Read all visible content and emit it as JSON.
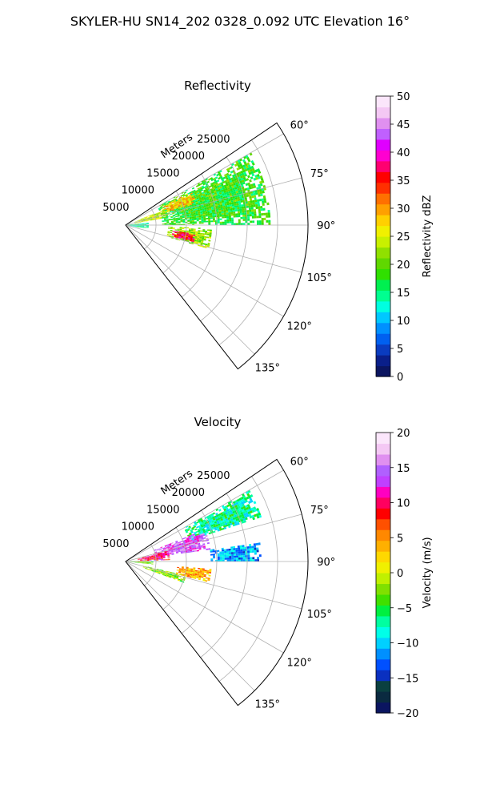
{
  "suptitle": "SKYLER-HU  SN14_202  0328_0.092 UTC Elevation 16°",
  "chart_data": [
    {
      "type": "heatmap",
      "subtype": "polar-sector",
      "title": "Reflectivity",
      "radial_label": "Meters",
      "radial_ticks": [
        "5000",
        "10000",
        "15000",
        "20000",
        "25000"
      ],
      "radial_values": [
        5000,
        10000,
        15000,
        20000,
        25000
      ],
      "angle_ticks": [
        "60°",
        "75°",
        "90°",
        "105°",
        "120°",
        "135°"
      ],
      "angle_values": [
        60,
        75,
        90,
        105,
        120,
        135
      ],
      "angle_range": [
        56,
        142
      ],
      "radial_range": [
        0,
        30000
      ],
      "grid": true,
      "colorbar": {
        "label": "Reflectivity dBZ",
        "range": [
          0,
          50
        ],
        "ticks": [
          "0",
          "5",
          "10",
          "15",
          "20",
          "25",
          "30",
          "35",
          "40",
          "45",
          "50"
        ],
        "tick_values": [
          0,
          5,
          10,
          15,
          20,
          25,
          30,
          35,
          40,
          45,
          50
        ],
        "colors": [
          "#0b1560",
          "#0a1f8a",
          "#0a3cc0",
          "#0060f0",
          "#0090ff",
          "#00c8ff",
          "#00ffe0",
          "#00ff90",
          "#00f050",
          "#30e000",
          "#60d800",
          "#90e000",
          "#c8f000",
          "#f0f000",
          "#ffd000",
          "#ffa000",
          "#ff7000",
          "#ff3000",
          "#ff0000",
          "#ff0070",
          "#ff00d0",
          "#e000ff",
          "#c060ff",
          "#e090f0",
          "#f4c8f4",
          "#fbe6fb"
        ]
      },
      "echo_regions": [
        {
          "az": [
            60,
            90
          ],
          "r": [
            6000,
            23500
          ],
          "value": 18
        },
        {
          "az": [
            63,
            73
          ],
          "r": [
            6500,
            12000
          ],
          "value": 28
        },
        {
          "az": [
            68,
            80
          ],
          "r": [
            1500,
            6500
          ],
          "value": 24
        },
        {
          "az": [
            92,
            106
          ],
          "r": [
            7000,
            14000
          ],
          "value": 22
        },
        {
          "az": [
            97,
            104
          ],
          "r": [
            7800,
            11500
          ],
          "value": 36
        },
        {
          "az": [
            82,
            100
          ],
          "r": [
            0,
            3500
          ],
          "value": 14
        }
      ]
    },
    {
      "type": "heatmap",
      "subtype": "polar-sector",
      "title": "Velocity",
      "radial_label": "Meters",
      "radial_ticks": [
        "5000",
        "10000",
        "15000",
        "20000",
        "25000"
      ],
      "radial_values": [
        5000,
        10000,
        15000,
        20000,
        25000
      ],
      "angle_ticks": [
        "60°",
        "75°",
        "90°",
        "105°",
        "120°",
        "135°"
      ],
      "angle_values": [
        60,
        75,
        90,
        105,
        120,
        135
      ],
      "angle_range": [
        56,
        142
      ],
      "radial_range": [
        0,
        30000
      ],
      "grid": true,
      "colorbar": {
        "label": "Velocity (m/s)",
        "range": [
          -20,
          20
        ],
        "ticks": [
          "−20",
          "−15",
          "−10",
          "−5",
          "0",
          "5",
          "10",
          "15",
          "20"
        ],
        "tick_values": [
          -20,
          -15,
          -10,
          -5,
          0,
          5,
          10,
          15,
          20
        ],
        "colors": [
          "#0b1560",
          "#0a2a40",
          "#0a4040",
          "#0a30c0",
          "#0050ff",
          "#0090ff",
          "#00d0ff",
          "#00ffe8",
          "#00ffa0",
          "#00f040",
          "#40e000",
          "#80e000",
          "#c0f000",
          "#f0f000",
          "#ffd800",
          "#ffb000",
          "#ff8800",
          "#ff5000",
          "#ff0000",
          "#ff0060",
          "#ff00c0",
          "#c040ff",
          "#b060ff",
          "#e090f0",
          "#f4c8f4",
          "#fbe6fb"
        ]
      },
      "echo_regions": [
        {
          "az": [
            60,
            72
          ],
          "r": [
            11000,
            23500
          ],
          "value": -7
        },
        {
          "az": [
            68,
            82
          ],
          "r": [
            5000,
            14000
          ],
          "value": 14
        },
        {
          "az": [
            75,
            88
          ],
          "r": [
            2000,
            7000
          ],
          "value": 10
        },
        {
          "az": [
            82,
            90
          ],
          "r": [
            14000,
            22000
          ],
          "value": -11
        },
        {
          "az": [
            88,
            96
          ],
          "r": [
            0,
            4500
          ],
          "value": -3
        },
        {
          "az": [
            95,
            104
          ],
          "r": [
            8500,
            14000
          ],
          "value": 4
        },
        {
          "az": [
            103,
            110
          ],
          "r": [
            3000,
            10000
          ],
          "value": -2
        }
      ]
    }
  ]
}
